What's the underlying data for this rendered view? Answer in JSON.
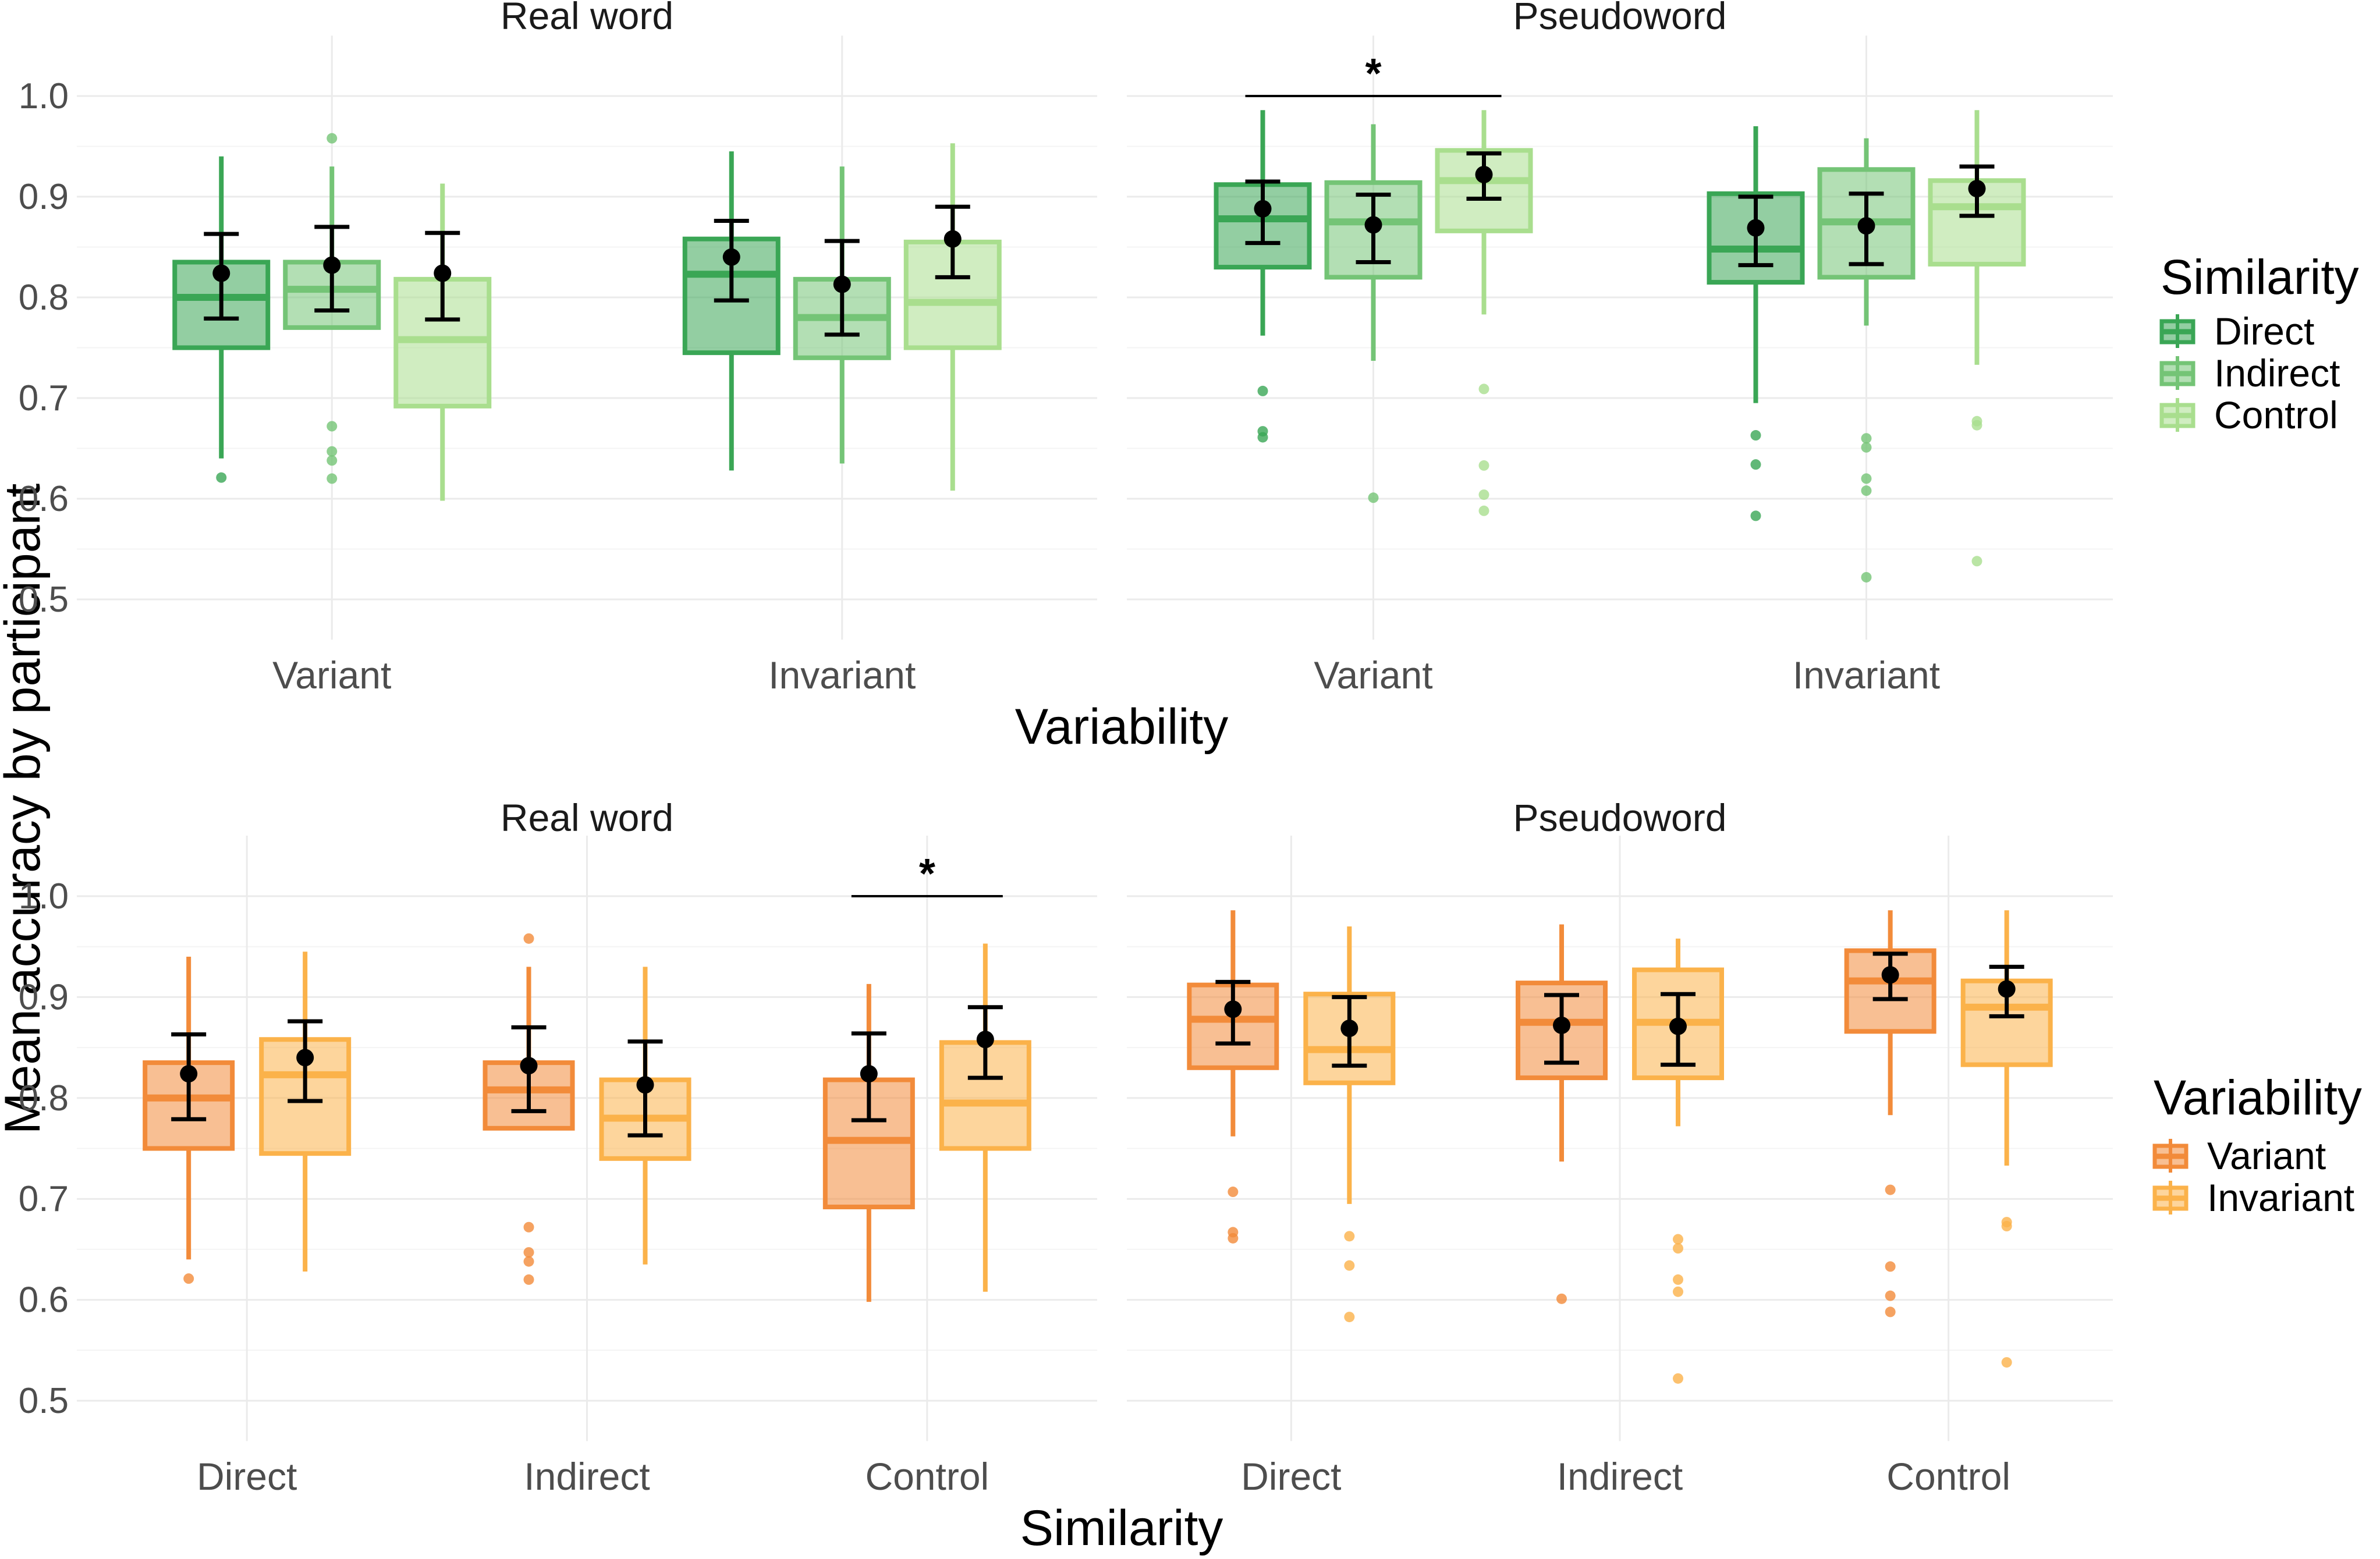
{
  "figure": {
    "y_axis_title": "Mean accuracy by participant",
    "x_axis_title_top": "Variability",
    "x_axis_title_bottom": "Similarity"
  },
  "colors": {
    "similarity": {
      "Direct": "#3aa655",
      "Indirect": "#74c476",
      "Control": "#a9de8e"
    },
    "variability": {
      "Variant": "#f28b3a",
      "Invariant": "#fbb24a"
    },
    "grid": "#ebebeb",
    "summary": "#000000"
  },
  "legends": {
    "similarity": {
      "title": "Similarity",
      "items": [
        "Direct",
        "Indirect",
        "Control"
      ]
    },
    "variability": {
      "title": "Variability",
      "items": [
        "Variant",
        "Invariant"
      ]
    }
  },
  "chart_data": [
    {
      "type": "box",
      "row": "top",
      "ylim": [
        0.46,
        1.06
      ],
      "yticks": [
        "0.5",
        "0.6",
        "0.7",
        "0.8",
        "0.9",
        "1.0"
      ],
      "xlabel": "Variability",
      "ylabel": "Mean accuracy by participant",
      "legend": "similarity",
      "panels": [
        {
          "title": "Real word",
          "categories": [
            "Variant",
            "Invariant"
          ],
          "groups": [
            "Direct",
            "Indirect",
            "Control"
          ],
          "boxes": [
            {
              "x": "Variant",
              "group": "Direct",
              "q1": 0.75,
              "median": 0.8,
              "q3": 0.835,
              "lo": 0.64,
              "hi": 0.94,
              "mean": 0.824,
              "ci_lo": 0.779,
              "ci_hi": 0.863,
              "outliers": [
                0.621
              ]
            },
            {
              "x": "Variant",
              "group": "Indirect",
              "q1": 0.77,
              "median": 0.808,
              "q3": 0.835,
              "lo": 0.77,
              "hi": 0.93,
              "mean": 0.832,
              "ci_lo": 0.787,
              "ci_hi": 0.87,
              "outliers": [
                0.958,
                0.672,
                0.647,
                0.638,
                0.62
              ]
            },
            {
              "x": "Variant",
              "group": "Control",
              "q1": 0.692,
              "median": 0.758,
              "q3": 0.818,
              "lo": 0.598,
              "hi": 0.913,
              "mean": 0.824,
              "ci_lo": 0.778,
              "ci_hi": 0.864,
              "outliers": []
            },
            {
              "x": "Invariant",
              "group": "Direct",
              "q1": 0.745,
              "median": 0.823,
              "q3": 0.858,
              "lo": 0.628,
              "hi": 0.945,
              "mean": 0.84,
              "ci_lo": 0.797,
              "ci_hi": 0.876,
              "outliers": []
            },
            {
              "x": "Invariant",
              "group": "Indirect",
              "q1": 0.74,
              "median": 0.78,
              "q3": 0.818,
              "lo": 0.635,
              "hi": 0.93,
              "mean": 0.813,
              "ci_lo": 0.763,
              "ci_hi": 0.856,
              "outliers": []
            },
            {
              "x": "Invariant",
              "group": "Control",
              "q1": 0.75,
              "median": 0.795,
              "q3": 0.855,
              "lo": 0.608,
              "hi": 0.953,
              "mean": 0.858,
              "ci_lo": 0.82,
              "ci_hi": 0.89,
              "outliers": []
            }
          ],
          "significance": []
        },
        {
          "title": "Pseudoword",
          "categories": [
            "Variant",
            "Invariant"
          ],
          "groups": [
            "Direct",
            "Indirect",
            "Control"
          ],
          "boxes": [
            {
              "x": "Variant",
              "group": "Direct",
              "q1": 0.83,
              "median": 0.878,
              "q3": 0.912,
              "lo": 0.762,
              "hi": 0.986,
              "mean": 0.888,
              "ci_lo": 0.854,
              "ci_hi": 0.915,
              "outliers": [
                0.707,
                0.667,
                0.661
              ]
            },
            {
              "x": "Variant",
              "group": "Indirect",
              "q1": 0.82,
              "median": 0.875,
              "q3": 0.914,
              "lo": 0.737,
              "hi": 0.972,
              "mean": 0.872,
              "ci_lo": 0.835,
              "ci_hi": 0.902,
              "outliers": [
                0.601
              ]
            },
            {
              "x": "Variant",
              "group": "Control",
              "q1": 0.866,
              "median": 0.916,
              "q3": 0.946,
              "lo": 0.783,
              "hi": 0.986,
              "mean": 0.922,
              "ci_lo": 0.898,
              "ci_hi": 0.943,
              "outliers": [
                0.709,
                0.633,
                0.604,
                0.588
              ]
            },
            {
              "x": "Invariant",
              "group": "Direct",
              "q1": 0.815,
              "median": 0.848,
              "q3": 0.903,
              "lo": 0.695,
              "hi": 0.97,
              "mean": 0.869,
              "ci_lo": 0.832,
              "ci_hi": 0.9,
              "outliers": [
                0.663,
                0.634,
                0.583
              ]
            },
            {
              "x": "Invariant",
              "group": "Indirect",
              "q1": 0.82,
              "median": 0.875,
              "q3": 0.927,
              "lo": 0.772,
              "hi": 0.958,
              "mean": 0.871,
              "ci_lo": 0.833,
              "ci_hi": 0.903,
              "outliers": [
                0.66,
                0.651,
                0.62,
                0.608,
                0.522
              ]
            },
            {
              "x": "Invariant",
              "group": "Control",
              "q1": 0.833,
              "median": 0.89,
              "q3": 0.916,
              "lo": 0.733,
              "hi": 0.986,
              "mean": 0.908,
              "ci_lo": 0.881,
              "ci_hi": 0.93,
              "outliers": [
                0.677,
                0.673,
                0.538
              ]
            }
          ],
          "significance": [
            {
              "from": 0,
              "to": 2,
              "y": 1.0,
              "label": "*"
            }
          ]
        }
      ]
    },
    {
      "type": "box",
      "row": "bottom",
      "ylim": [
        0.46,
        1.06
      ],
      "yticks": [
        "0.5",
        "0.6",
        "0.7",
        "0.8",
        "0.9",
        "1.0"
      ],
      "xlabel": "Similarity",
      "ylabel": "Mean accuracy by participant",
      "legend": "variability",
      "panels": [
        {
          "title": "Real word",
          "categories": [
            "Direct",
            "Indirect",
            "Control"
          ],
          "groups": [
            "Variant",
            "Invariant"
          ],
          "boxes": [
            {
              "x": "Direct",
              "group": "Variant",
              "q1": 0.75,
              "median": 0.8,
              "q3": 0.835,
              "lo": 0.64,
              "hi": 0.94,
              "mean": 0.824,
              "ci_lo": 0.779,
              "ci_hi": 0.863,
              "outliers": [
                0.621
              ]
            },
            {
              "x": "Direct",
              "group": "Invariant",
              "q1": 0.745,
              "median": 0.823,
              "q3": 0.858,
              "lo": 0.628,
              "hi": 0.945,
              "mean": 0.84,
              "ci_lo": 0.797,
              "ci_hi": 0.876,
              "outliers": []
            },
            {
              "x": "Indirect",
              "group": "Variant",
              "q1": 0.77,
              "median": 0.808,
              "q3": 0.835,
              "lo": 0.77,
              "hi": 0.93,
              "mean": 0.832,
              "ci_lo": 0.787,
              "ci_hi": 0.87,
              "outliers": [
                0.958,
                0.672,
                0.647,
                0.638,
                0.62
              ]
            },
            {
              "x": "Indirect",
              "group": "Invariant",
              "q1": 0.74,
              "median": 0.78,
              "q3": 0.818,
              "lo": 0.635,
              "hi": 0.93,
              "mean": 0.813,
              "ci_lo": 0.763,
              "ci_hi": 0.856,
              "outliers": []
            },
            {
              "x": "Control",
              "group": "Variant",
              "q1": 0.692,
              "median": 0.758,
              "q3": 0.818,
              "lo": 0.598,
              "hi": 0.913,
              "mean": 0.824,
              "ci_lo": 0.778,
              "ci_hi": 0.864,
              "outliers": []
            },
            {
              "x": "Control",
              "group": "Invariant",
              "q1": 0.75,
              "median": 0.795,
              "q3": 0.855,
              "lo": 0.608,
              "hi": 0.953,
              "mean": 0.858,
              "ci_lo": 0.82,
              "ci_hi": 0.89,
              "outliers": []
            }
          ],
          "significance": [
            {
              "from": 4,
              "to": 5,
              "y": 1.0,
              "label": "*"
            }
          ]
        },
        {
          "title": "Pseudoword",
          "categories": [
            "Direct",
            "Indirect",
            "Control"
          ],
          "groups": [
            "Variant",
            "Invariant"
          ],
          "boxes": [
            {
              "x": "Direct",
              "group": "Variant",
              "q1": 0.83,
              "median": 0.878,
              "q3": 0.912,
              "lo": 0.762,
              "hi": 0.986,
              "mean": 0.888,
              "ci_lo": 0.854,
              "ci_hi": 0.915,
              "outliers": [
                0.707,
                0.667,
                0.661
              ]
            },
            {
              "x": "Direct",
              "group": "Invariant",
              "q1": 0.815,
              "median": 0.848,
              "q3": 0.903,
              "lo": 0.695,
              "hi": 0.97,
              "mean": 0.869,
              "ci_lo": 0.832,
              "ci_hi": 0.9,
              "outliers": [
                0.663,
                0.634,
                0.583
              ]
            },
            {
              "x": "Indirect",
              "group": "Variant",
              "q1": 0.82,
              "median": 0.875,
              "q3": 0.914,
              "lo": 0.737,
              "hi": 0.972,
              "mean": 0.872,
              "ci_lo": 0.835,
              "ci_hi": 0.902,
              "outliers": [
                0.601
              ]
            },
            {
              "x": "Indirect",
              "group": "Invariant",
              "q1": 0.82,
              "median": 0.875,
              "q3": 0.927,
              "lo": 0.772,
              "hi": 0.958,
              "mean": 0.871,
              "ci_lo": 0.833,
              "ci_hi": 0.903,
              "outliers": [
                0.66,
                0.651,
                0.62,
                0.608,
                0.522
              ]
            },
            {
              "x": "Control",
              "group": "Variant",
              "q1": 0.866,
              "median": 0.916,
              "q3": 0.946,
              "lo": 0.783,
              "hi": 0.986,
              "mean": 0.922,
              "ci_lo": 0.898,
              "ci_hi": 0.943,
              "outliers": [
                0.709,
                0.633,
                0.604,
                0.588
              ]
            },
            {
              "x": "Control",
              "group": "Invariant",
              "q1": 0.833,
              "median": 0.89,
              "q3": 0.916,
              "lo": 0.733,
              "hi": 0.986,
              "mean": 0.908,
              "ci_lo": 0.881,
              "ci_hi": 0.93,
              "outliers": [
                0.677,
                0.673,
                0.538
              ]
            }
          ],
          "significance": []
        }
      ]
    }
  ]
}
